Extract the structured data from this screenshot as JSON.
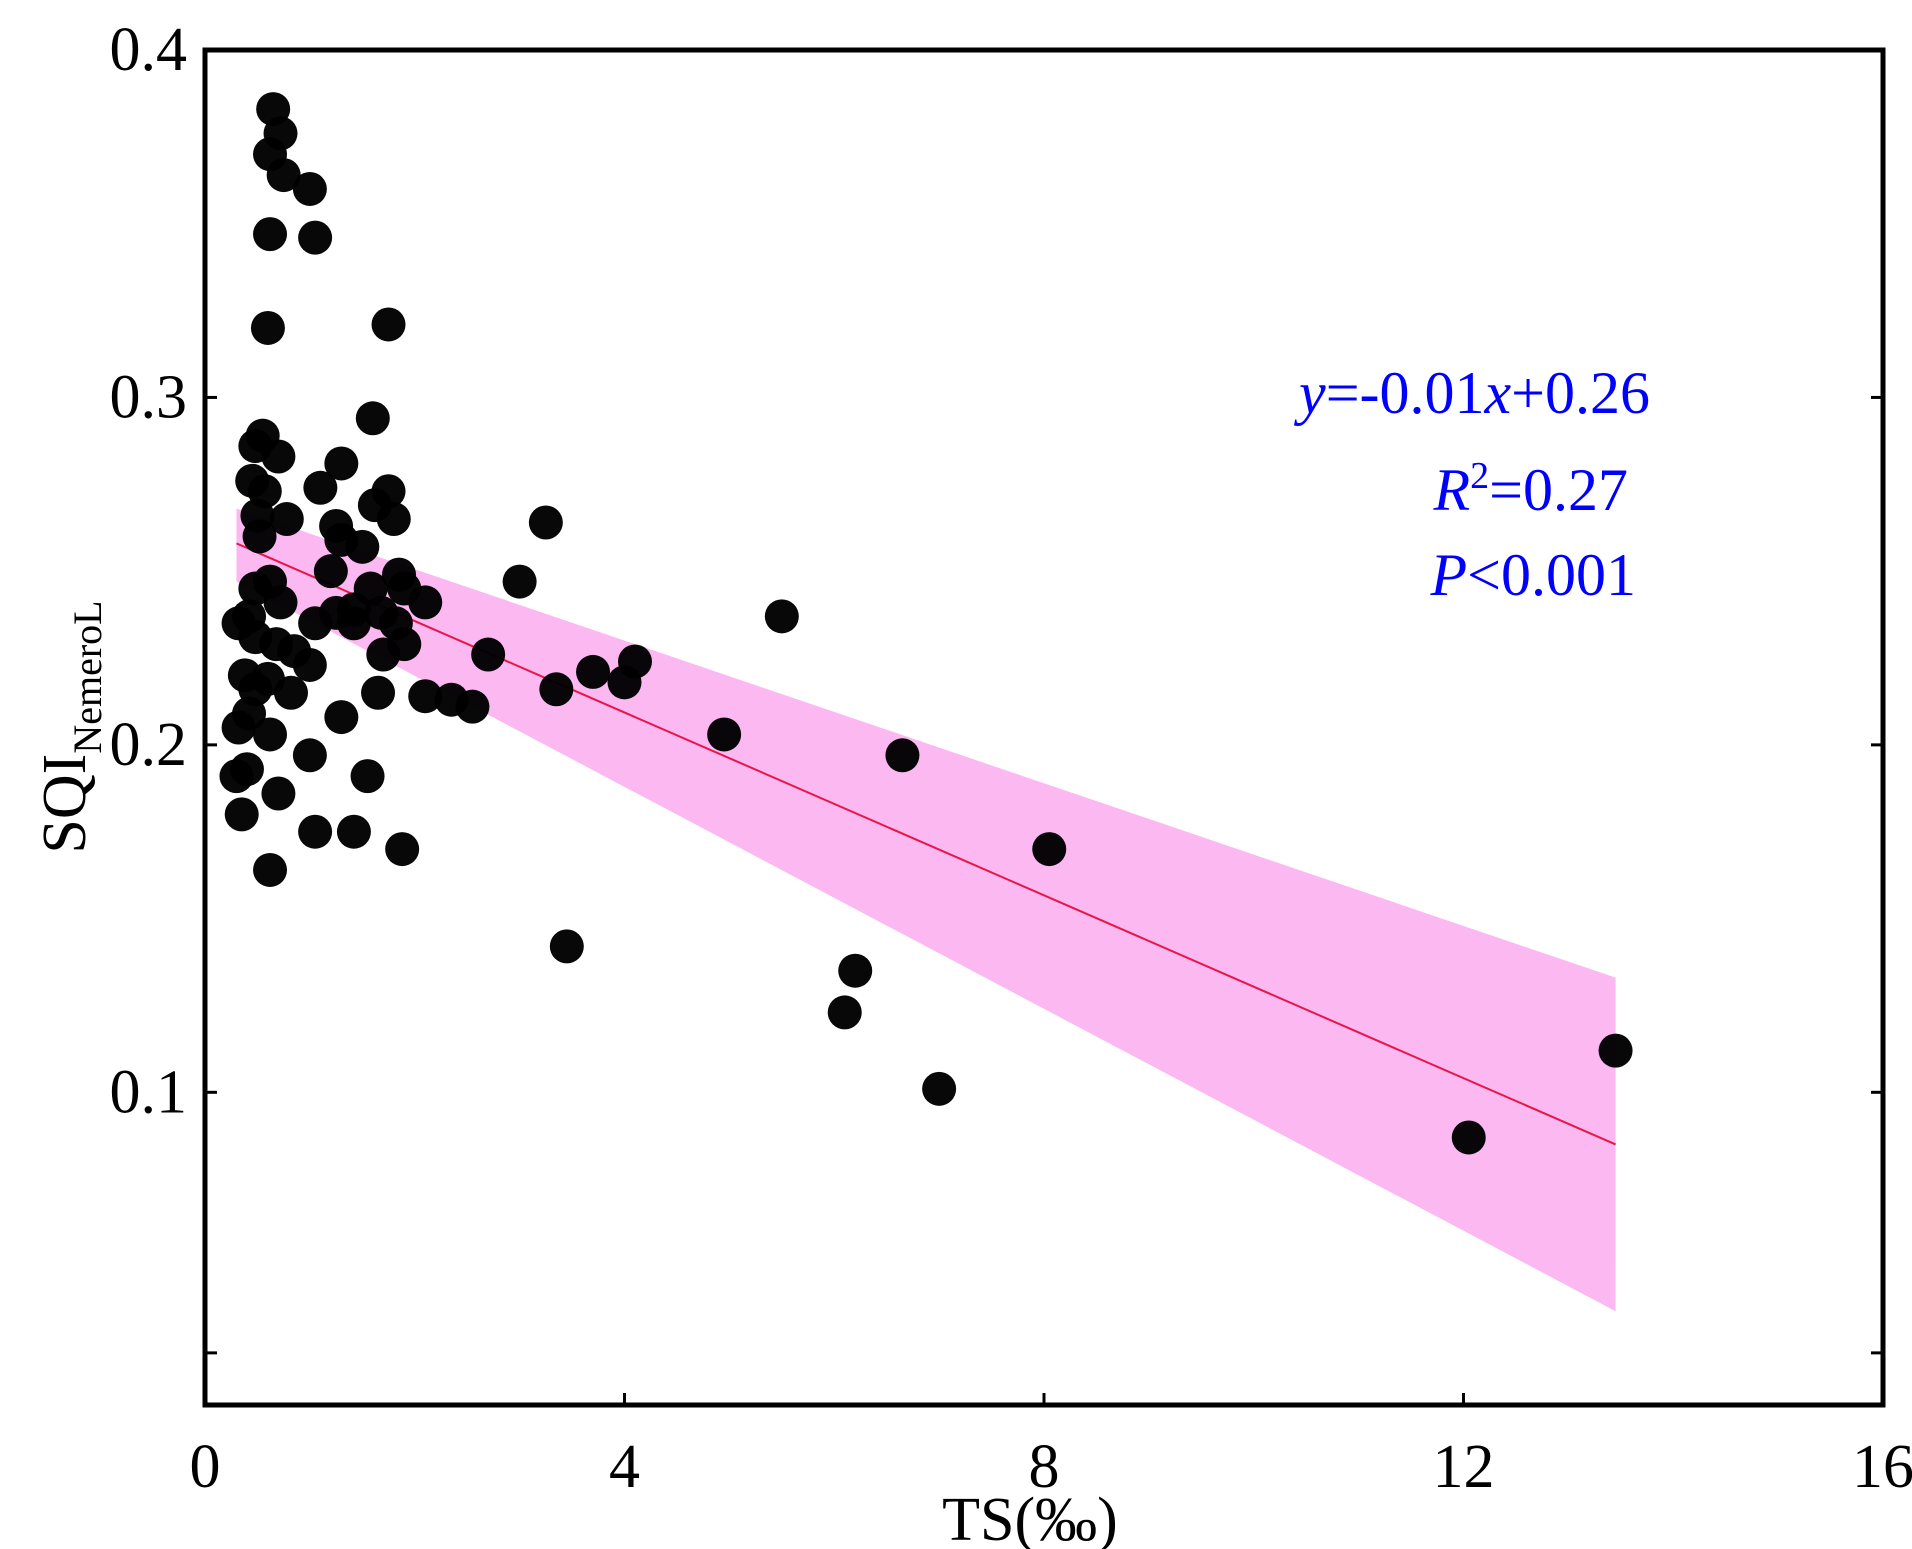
{
  "chart_data": {
    "type": "scatter",
    "xlabel": "TS(‰)",
    "ylabel_main": "SQI",
    "ylabel_sub": "NemeroL",
    "xlim": [
      0,
      16
    ],
    "ylim": [
      0.01,
      0.4
    ],
    "x_ticks": [
      0,
      4,
      8,
      12,
      16
    ],
    "x_tick_labels": [
      "0",
      "4",
      "8",
      "12",
      "16"
    ],
    "y_ticks": [
      0.1,
      0.2,
      0.3,
      0.4
    ],
    "y_tick_labels": [
      "0.1",
      "0.2",
      "0.3",
      "0.4"
    ],
    "y_minor_ticks": [
      0.025
    ],
    "grid": false,
    "points": [
      {
        "x": 0.65,
        "y": 0.383
      },
      {
        "x": 0.72,
        "y": 0.376
      },
      {
        "x": 0.62,
        "y": 0.37
      },
      {
        "x": 0.75,
        "y": 0.364
      },
      {
        "x": 1.0,
        "y": 0.36
      },
      {
        "x": 0.62,
        "y": 0.347
      },
      {
        "x": 1.05,
        "y": 0.346
      },
      {
        "x": 0.6,
        "y": 0.32
      },
      {
        "x": 1.75,
        "y": 0.321
      },
      {
        "x": 1.6,
        "y": 0.294
      },
      {
        "x": 0.55,
        "y": 0.289
      },
      {
        "x": 0.48,
        "y": 0.286
      },
      {
        "x": 0.7,
        "y": 0.283
      },
      {
        "x": 1.3,
        "y": 0.281
      },
      {
        "x": 0.45,
        "y": 0.276
      },
      {
        "x": 0.57,
        "y": 0.273
      },
      {
        "x": 1.1,
        "y": 0.274
      },
      {
        "x": 1.75,
        "y": 0.273
      },
      {
        "x": 1.62,
        "y": 0.269
      },
      {
        "x": 0.5,
        "y": 0.266
      },
      {
        "x": 0.78,
        "y": 0.265
      },
      {
        "x": 1.8,
        "y": 0.265
      },
      {
        "x": 1.25,
        "y": 0.263
      },
      {
        "x": 0.52,
        "y": 0.26
      },
      {
        "x": 1.3,
        "y": 0.259
      },
      {
        "x": 1.5,
        "y": 0.257
      },
      {
        "x": 1.2,
        "y": 0.25
      },
      {
        "x": 1.85,
        "y": 0.249
      },
      {
        "x": 0.62,
        "y": 0.247
      },
      {
        "x": 0.48,
        "y": 0.245
      },
      {
        "x": 1.58,
        "y": 0.245
      },
      {
        "x": 1.9,
        "y": 0.245
      },
      {
        "x": 2.1,
        "y": 0.241
      },
      {
        "x": 0.72,
        "y": 0.241
      },
      {
        "x": 1.42,
        "y": 0.239
      },
      {
        "x": 1.25,
        "y": 0.238
      },
      {
        "x": 1.68,
        "y": 0.238
      },
      {
        "x": 3.0,
        "y": 0.247
      },
      {
        "x": 5.5,
        "y": 0.237
      },
      {
        "x": 0.42,
        "y": 0.237
      },
      {
        "x": 0.32,
        "y": 0.235
      },
      {
        "x": 1.05,
        "y": 0.235
      },
      {
        "x": 1.42,
        "y": 0.235
      },
      {
        "x": 1.82,
        "y": 0.235
      },
      {
        "x": 3.25,
        "y": 0.264
      },
      {
        "x": 0.48,
        "y": 0.231
      },
      {
        "x": 0.68,
        "y": 0.229
      },
      {
        "x": 1.9,
        "y": 0.229
      },
      {
        "x": 0.85,
        "y": 0.227
      },
      {
        "x": 1.7,
        "y": 0.226
      },
      {
        "x": 2.7,
        "y": 0.226
      },
      {
        "x": 4.1,
        "y": 0.224
      },
      {
        "x": 1.0,
        "y": 0.223
      },
      {
        "x": 3.7,
        "y": 0.221
      },
      {
        "x": 0.38,
        "y": 0.22
      },
      {
        "x": 0.6,
        "y": 0.219
      },
      {
        "x": 4.0,
        "y": 0.218
      },
      {
        "x": 0.48,
        "y": 0.216
      },
      {
        "x": 0.82,
        "y": 0.215
      },
      {
        "x": 3.35,
        "y": 0.216
      },
      {
        "x": 1.65,
        "y": 0.215
      },
      {
        "x": 2.1,
        "y": 0.214
      },
      {
        "x": 2.35,
        "y": 0.213
      },
      {
        "x": 2.55,
        "y": 0.211
      },
      {
        "x": 0.42,
        "y": 0.209
      },
      {
        "x": 1.3,
        "y": 0.208
      },
      {
        "x": 0.32,
        "y": 0.205
      },
      {
        "x": 0.62,
        "y": 0.203
      },
      {
        "x": 4.95,
        "y": 0.203
      },
      {
        "x": 6.65,
        "y": 0.197
      },
      {
        "x": 1.0,
        "y": 0.197
      },
      {
        "x": 0.4,
        "y": 0.193
      },
      {
        "x": 0.3,
        "y": 0.191
      },
      {
        "x": 1.55,
        "y": 0.191
      },
      {
        "x": 0.7,
        "y": 0.186
      },
      {
        "x": 0.35,
        "y": 0.18
      },
      {
        "x": 1.05,
        "y": 0.175
      },
      {
        "x": 1.42,
        "y": 0.175
      },
      {
        "x": 1.88,
        "y": 0.17
      },
      {
        "x": 8.05,
        "y": 0.17
      },
      {
        "x": 0.62,
        "y": 0.164
      },
      {
        "x": 3.45,
        "y": 0.142
      },
      {
        "x": 6.2,
        "y": 0.135
      },
      {
        "x": 6.1,
        "y": 0.123
      },
      {
        "x": 13.45,
        "y": 0.112
      },
      {
        "x": 7.0,
        "y": 0.101
      },
      {
        "x": 12.05,
        "y": 0.087
      }
    ],
    "fit": {
      "x_range": [
        0.3,
        13.45
      ],
      "y_start": 0.258,
      "y_end": 0.085,
      "ci_upper": [
        0.268,
        0.133
      ],
      "ci_lower": [
        0.247,
        0.037
      ]
    },
    "colors": {
      "points": "#000000",
      "fit_line": "#e8154b",
      "ci_band": "#fbb4f0",
      "annotation": "#0000ff"
    },
    "annotation": {
      "equation_var": "y",
      "equation_mid": "=-0.01",
      "equation_var2": "x",
      "equation_end": "+0.26",
      "r2_var": "R",
      "r2_sup": "2",
      "r2_value": "=0.27",
      "p_var": "P",
      "p_value": "<0.001"
    }
  }
}
